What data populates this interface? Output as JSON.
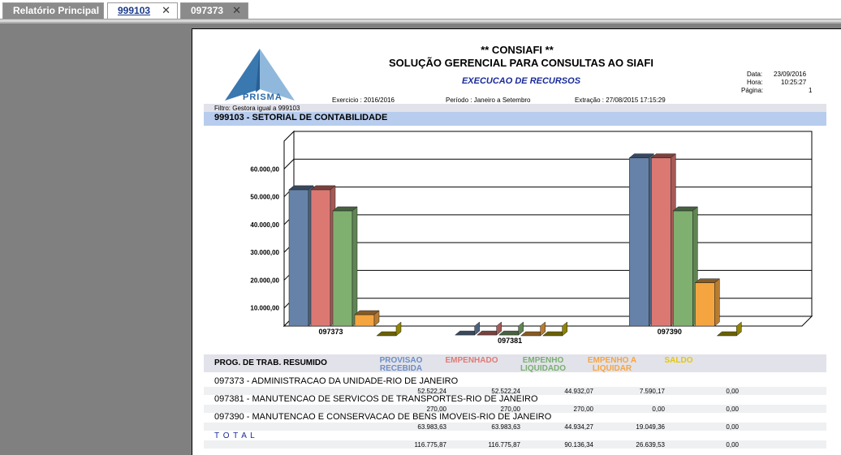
{
  "tabs": [
    {
      "label": "Relatório Principal",
      "active": false,
      "closable": false
    },
    {
      "label": "999103",
      "active": true,
      "closable": true
    },
    {
      "label": "097373",
      "active": false,
      "closable": true
    }
  ],
  "report": {
    "logo_text": "PRISMA",
    "title1": "** CONSIAFI **",
    "title2": "SOLUÇÃO GERENCIAL PARA CONSULTAS AO SIAFI",
    "title3": "EXECUCAO DE RECURSOS",
    "meta": {
      "data_label": "Data:",
      "data_value": "23/09/2016",
      "hora_label": "Hora:",
      "hora_value": "10:25:27",
      "pagina_label": "Página:",
      "pagina_value": "1"
    },
    "exercicio": "Exercicio :  2016/2016",
    "periodo": "Período :  Janeiro a Setembro",
    "extracao": "Extração : 27/08/2015  17:15:29",
    "filtro": "Filtro: Gestora igual a 999103",
    "section_title": "999103 - SETORIAL DE CONTABILIDADE"
  },
  "chart_data": {
    "type": "bar",
    "categories": [
      "097373",
      "097381",
      "097390"
    ],
    "series": [
      {
        "name": "PROVISAO RECEBIDA",
        "color": "#6682a8",
        "values": [
          52522.24,
          270.0,
          63983.63
        ]
      },
      {
        "name": "EMPENHADO",
        "color": "#dc7872",
        "values": [
          52522.24,
          270.0,
          63983.63
        ]
      },
      {
        "name": "EMPENHO LIQUIDADO",
        "color": "#80b070",
        "values": [
          44932.07,
          270.0,
          44934.27
        ]
      },
      {
        "name": "EMPENHO A LIQUIDAR",
        "color": "#f5a540",
        "values": [
          7590.17,
          0,
          19049.36
        ]
      },
      {
        "name": "SALDO",
        "color": "#c0b000",
        "values": [
          0,
          0,
          0
        ]
      }
    ],
    "ylim": [
      0,
      70000
    ],
    "yticks": [
      "10.000,00",
      "20.000,00",
      "30.000,00",
      "40.000,00",
      "50.000,00",
      "60.000,00"
    ],
    "grid": true
  },
  "table": {
    "header_label": "PROG. DE TRAB. RESUMIDO",
    "columns": [
      {
        "line1": "PROVISAO",
        "line2": "RECEBIDA",
        "color": "#6c8ec4"
      },
      {
        "line1": "EMPENHADO",
        "line2": "",
        "color": "#e07a74"
      },
      {
        "line1": "EMPENHO",
        "line2": "LIQUIDADO",
        "color": "#78b070"
      },
      {
        "line1": "EMPENHO A",
        "line2": "LIQUIDAR",
        "color": "#f5a540"
      },
      {
        "line1": "SALDO",
        "line2": "",
        "color": "#e6c800"
      }
    ],
    "rows": [
      {
        "label": "097373 - ADMINISTRACAO DA UNIDADE-RIO DE JANEIRO",
        "values": [
          "52.522,24",
          "52.522,24",
          "44.932,07",
          "7.590,17",
          "0,00"
        ]
      },
      {
        "label": "097381 - MANUTENCAO DE SERVICOS DE TRANSPORTES-RIO DE JANEIRO",
        "values": [
          "270,00",
          "270,00",
          "270,00",
          "0,00",
          "0,00"
        ]
      },
      {
        "label": "097390 - MANUTENCAO E CONSERVACAO DE BENS IMOVEIS-RIO DE JANEIRO",
        "values": [
          "63.983,63",
          "63.983,63",
          "44.934,27",
          "19.049,36",
          "0,00"
        ]
      }
    ],
    "total_label": "T O T A L",
    "total_values": [
      "116.775,87",
      "116.775,87",
      "90.136,34",
      "26.639,53",
      "0,00"
    ]
  }
}
